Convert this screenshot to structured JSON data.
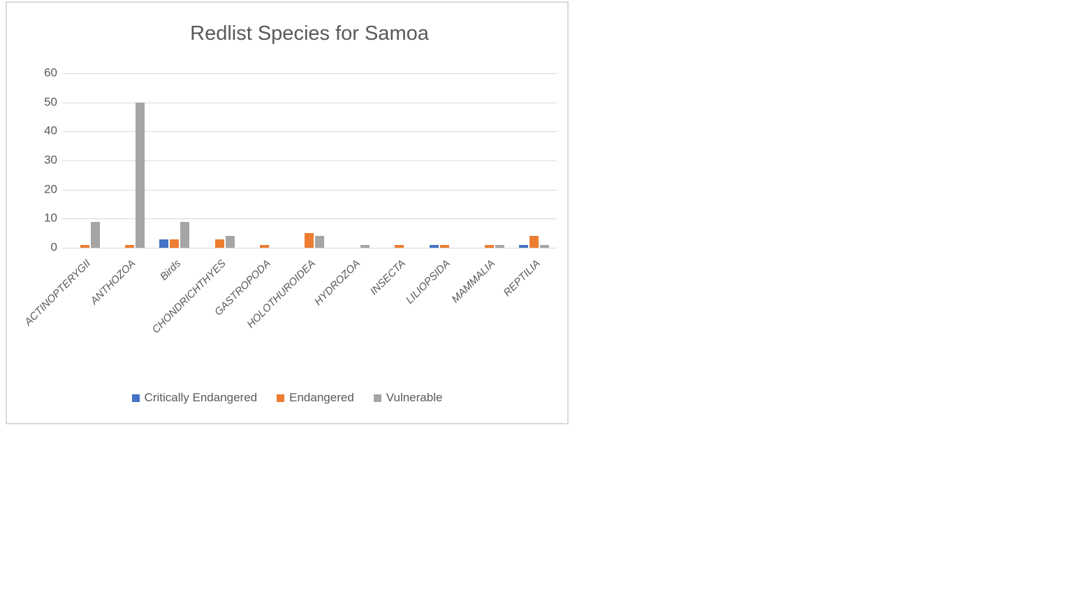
{
  "chart_box": {
    "background": "#ffffff",
    "border_color": "#d9d9d9"
  },
  "chart_data": {
    "type": "bar",
    "title": "Redlist Species for Samoa",
    "categories": [
      "ACTINOPTERYGII",
      "ANTHOZOA",
      "Birds",
      "CHONDRICHTHYES",
      "GASTROPODA",
      "HOLOTHUROIDEA",
      "HYDROZOA",
      "INSECTA",
      "LILIOPSIDA",
      "MAMMALIA",
      "REPTILIA"
    ],
    "series": [
      {
        "name": "Critically Endangered",
        "color": "#4472C4",
        "values": [
          0,
          0,
          3,
          0,
          0,
          0,
          0,
          0,
          1,
          0,
          1
        ]
      },
      {
        "name": "Endangered",
        "color": "#ED7D31",
        "values": [
          1,
          1,
          3,
          3,
          1,
          5,
          0,
          1,
          1,
          1,
          4
        ]
      },
      {
        "name": "Vulnerable",
        "color": "#A5A5A5",
        "values": [
          9,
          50,
          9,
          4,
          0,
          4,
          1,
          0,
          0,
          1,
          1
        ]
      }
    ],
    "xlabel": "",
    "ylabel": "",
    "ylim": [
      0,
      60
    ],
    "yticks": [
      0,
      10,
      20,
      30,
      40,
      50,
      60
    ],
    "grid": true,
    "gridline_color": "#d9d9d9",
    "axis_text_color": "#595959",
    "title_color": "#595959",
    "legend_position": "bottom"
  }
}
